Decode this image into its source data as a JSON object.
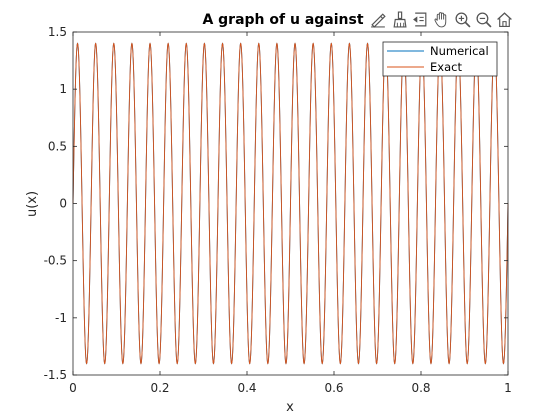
{
  "chart_data": {
    "type": "line",
    "title": "A graph of u against",
    "xlabel": "x",
    "ylabel": "u(x)",
    "xlim": [
      0,
      1
    ],
    "ylim": [
      -1.5,
      1.5
    ],
    "xticks": [
      0,
      0.2,
      0.4,
      0.6,
      0.8,
      1
    ],
    "xtick_labels": [
      "0",
      "0.2",
      "0.4",
      "0.6",
      "0.8",
      "1"
    ],
    "yticks": [
      -1.5,
      -1,
      -0.5,
      0,
      0.5,
      1,
      1.5
    ],
    "ytick_labels": [
      "-1.5",
      "-1",
      "-0.5",
      "0",
      "0.5",
      "1",
      "1.5"
    ],
    "grid": false,
    "legend_position": "top-right",
    "function": "u(x) = 1.4 * sin(2*pi*24*x)",
    "amplitude": 1.4,
    "cycles": 24,
    "series": [
      {
        "name": "Numerical",
        "color": "#0072BD"
      },
      {
        "name": "Exact",
        "color": "#D95319"
      }
    ]
  },
  "toolbar": {
    "icons": [
      "edit-plot-icon",
      "brush-icon",
      "data-tips-icon",
      "pan-icon",
      "zoom-in-icon",
      "zoom-out-icon",
      "home-icon"
    ]
  }
}
